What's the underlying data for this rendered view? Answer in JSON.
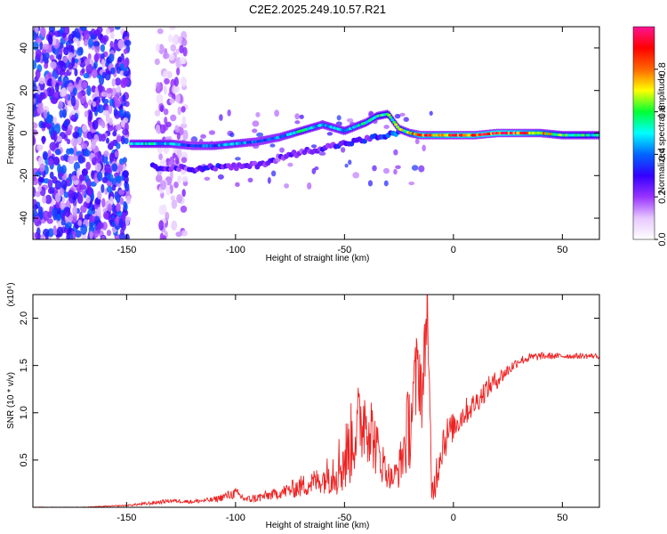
{
  "title": "C2E2.2025.249.10.57.R21",
  "colors": {
    "snr_line": "#ee2222",
    "axis": "#000000"
  },
  "colormap_stops": [
    "#ffffff",
    "#e6c8ff",
    "#9933ff",
    "#3300ff",
    "#0066ff",
    "#00ffff",
    "#00ff33",
    "#ffff00",
    "#ff6600",
    "#ff0000",
    "#ff1493"
  ],
  "chart_data": [
    {
      "type": "heatmap",
      "xlabel": "Height of straight line (km)",
      "ylabel": "Frequency (Hz)",
      "xlim": [
        -193,
        67
      ],
      "ylim": [
        -50,
        50
      ],
      "xticks": [
        -150,
        -100,
        -50,
        0,
        50
      ],
      "yticks": [
        -40,
        -20,
        0,
        20,
        40
      ],
      "colorbar": {
        "label": "Normalized spectral amplitude",
        "range": [
          0,
          1
        ],
        "ticks": [
          "0.0",
          "0.2",
          "0.4",
          "0.6",
          "0.8"
        ],
        "tick_values": [
          0.0,
          0.2,
          0.4,
          0.6,
          0.8
        ]
      },
      "ridge": {
        "x": [
          -148,
          -140,
          -130,
          -120,
          -110,
          -100,
          -90,
          -80,
          -70,
          -60,
          -50,
          -40,
          -35,
          -30,
          -25,
          -20,
          -15,
          -10,
          0,
          10,
          20,
          30,
          40,
          50,
          60,
          67
        ],
        "y": [
          -5,
          -5,
          -5,
          -6,
          -6,
          -5,
          -4,
          -2,
          1,
          4,
          1,
          5,
          8,
          9,
          2,
          0,
          -1,
          -1,
          -1,
          -1,
          0,
          0,
          0,
          -1,
          -1,
          -1
        ],
        "amplitude": [
          0.45,
          0.5,
          0.45,
          0.35,
          0.4,
          0.45,
          0.35,
          0.4,
          0.5,
          0.45,
          0.45,
          0.5,
          0.55,
          0.55,
          0.6,
          0.7,
          0.85,
          0.8,
          0.85,
          0.85,
          0.9,
          0.85,
          0.75,
          0.6,
          0.55,
          0.5
        ]
      },
      "secondary_track": {
        "x": [
          -138,
          -130,
          -120,
          -110,
          -100,
          -90,
          -80,
          -70,
          -60,
          -50,
          -40,
          -30,
          -25
        ],
        "y": [
          -16,
          -16,
          -17,
          -16,
          -16,
          -15,
          -12,
          -9,
          -7,
          -5,
          -3,
          -1,
          0
        ],
        "amplitude": [
          0.3,
          0.3,
          0.25,
          0.3,
          0.25,
          0.25,
          0.25,
          0.25,
          0.3,
          0.3,
          0.3,
          0.35,
          0.4
        ]
      },
      "noise_regions": [
        {
          "x": [
            -193,
            -149
          ],
          "y": [
            -50,
            50
          ],
          "amplitude": 0.35
        },
        {
          "x": [
            -136,
            -123
          ],
          "y": [
            -50,
            50
          ],
          "amplitude": 0.2
        }
      ]
    },
    {
      "type": "line",
      "xlabel": "Height of straight line (km)",
      "ylabel": "SNR (10 * v/v)",
      "y_multiplier": "(x10⁴)",
      "xlim": [
        -193,
        67
      ],
      "ylim": [
        0,
        2.25
      ],
      "xticks": [
        -150,
        -100,
        -50,
        0,
        50
      ],
      "yticks": [
        0.5,
        1.0,
        1.5,
        2.0
      ],
      "ytick_labels": [
        "0.5",
        "1.0",
        "1.5",
        "2.0"
      ],
      "series": [
        {
          "color": "#ee2222",
          "x": [
            -193,
            -170,
            -150,
            -140,
            -130,
            -120,
            -110,
            -100,
            -95,
            -90,
            -80,
            -70,
            -60,
            -50,
            -45,
            -40,
            -35,
            -30,
            -28,
            -25,
            -22,
            -20,
            -18,
            -16,
            -14,
            -12,
            -10,
            -5,
            0,
            5,
            10,
            15,
            20,
            25,
            30,
            35,
            40,
            50,
            60,
            67
          ],
          "y": [
            0.0,
            0.0,
            0.02,
            0.04,
            0.07,
            0.06,
            0.08,
            0.15,
            0.08,
            0.1,
            0.15,
            0.22,
            0.3,
            0.5,
            0.8,
            1.0,
            0.6,
            0.35,
            0.3,
            0.4,
            0.7,
            0.9,
            1.2,
            1.5,
            1.2,
            2.25,
            0.1,
            0.7,
            0.85,
            1.0,
            1.1,
            1.25,
            1.35,
            1.45,
            1.55,
            1.58,
            1.6,
            1.6,
            1.6,
            1.6
          ],
          "noise_amp": [
            0.003,
            0.004,
            0.006,
            0.02,
            0.02,
            0.02,
            0.03,
            0.06,
            0.04,
            0.05,
            0.06,
            0.12,
            0.15,
            0.4,
            0.45,
            0.5,
            0.3,
            0.15,
            0.12,
            0.2,
            0.4,
            0.5,
            0.5,
            0.5,
            0.45,
            0.4,
            0.2,
            0.25,
            0.15,
            0.15,
            0.12,
            0.12,
            0.1,
            0.07,
            0.05,
            0.05,
            0.04,
            0.03,
            0.03,
            0.03
          ]
        }
      ]
    }
  ]
}
